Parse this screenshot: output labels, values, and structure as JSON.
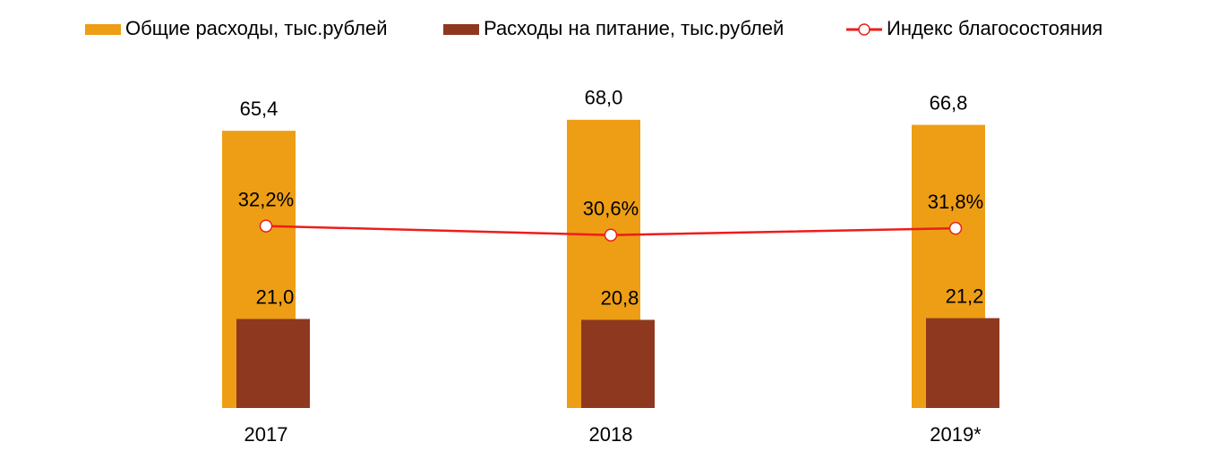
{
  "chart_data": {
    "type": "bar",
    "categories": [
      "2017",
      "2018",
      "2019*"
    ],
    "series": [
      {
        "name": "Общие расходы, тыс.рублей",
        "color": "#ed9e15",
        "values": [
          65.4,
          68.0,
          66.8
        ],
        "value_labels": [
          "65,4",
          "68,0",
          "66,8"
        ]
      },
      {
        "name": "Расходы на питание, тыс.рублей",
        "color": "#8e3820",
        "values": [
          21.0,
          20.8,
          21.2
        ],
        "value_labels": [
          "21,0",
          "20,8",
          "21,2"
        ]
      },
      {
        "name": "Индекс благосостояния",
        "type": "line",
        "axis": "y2",
        "color": "#ee1c1c",
        "values": [
          32.2,
          30.6,
          31.8
        ],
        "value_labels": [
          "32,2%",
          "30,6%",
          "31,8%"
        ]
      }
    ],
    "ylim": [
      0,
      80
    ],
    "y2lim": [
      0,
      60
    ],
    "grid": false,
    "legend": "top"
  }
}
